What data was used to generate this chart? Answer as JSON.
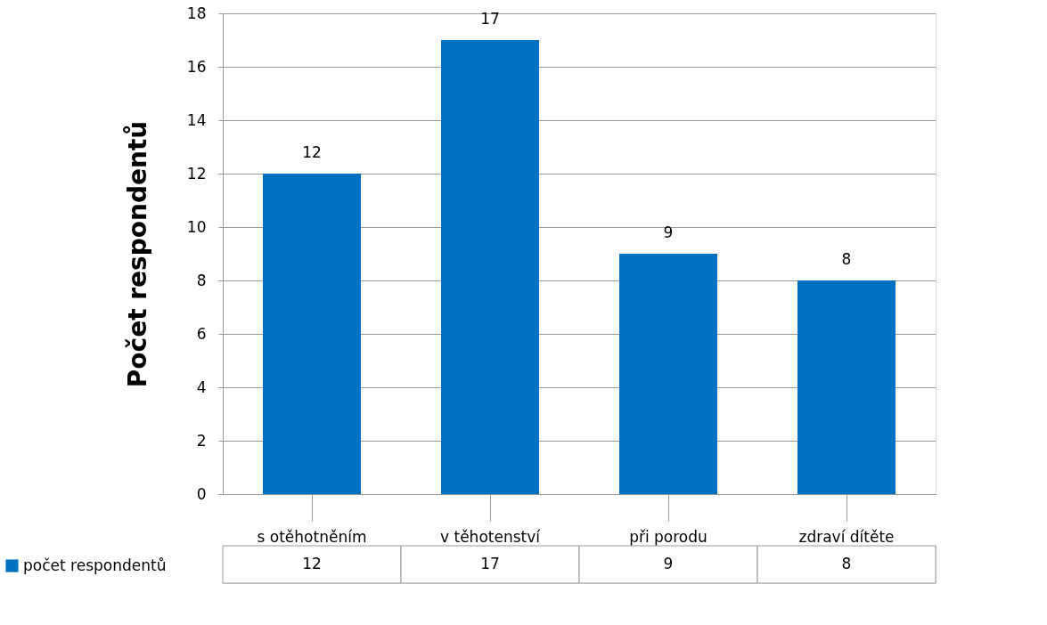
{
  "chart_data": {
    "type": "bar",
    "ylabel": "Počet respondentů",
    "categories": [
      "s otěhotněním",
      "v těhotenství",
      "při porodu",
      "zdraví dítěte"
    ],
    "series": [
      {
        "name": "počet respondentů",
        "color": "#0070c0",
        "values": [
          12,
          17,
          9,
          8
        ],
        "value_labels": [
          "12",
          "17",
          "9",
          "8"
        ]
      }
    ],
    "ylim": [
      0,
      18
    ],
    "yticks": [
      0,
      2,
      4,
      6,
      8,
      10,
      12,
      14,
      16,
      18
    ],
    "annotations": [
      "12",
      "17",
      "9",
      "8"
    ],
    "grid": "y",
    "legend": "bottom",
    "data_labels": true
  }
}
